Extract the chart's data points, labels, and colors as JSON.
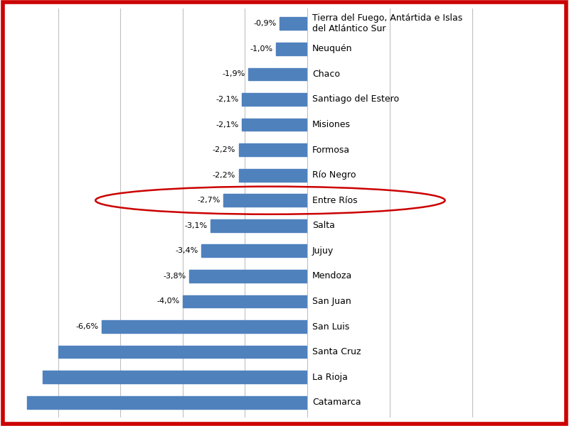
{
  "categories": [
    "Tierra del Fuego, Antártida e Islas\ndel Atlántico Sur",
    "Neuquén",
    "Chaco",
    "Santiago del Estero",
    "Misiones",
    "Formosa",
    "Río Negro",
    "Entre Ríos",
    "Salta",
    "Jujuy",
    "Mendoza",
    "San Juan",
    "San Luis",
    "Santa Cruz",
    "La Rioja",
    "Catamarca"
  ],
  "values": [
    -0.9,
    -1.0,
    -1.9,
    -2.1,
    -2.1,
    -2.2,
    -2.2,
    -2.7,
    -3.1,
    -3.4,
    -3.8,
    -4.0,
    -6.6,
    -8.0,
    -8.5,
    -9.0
  ],
  "labels": [
    "-0,9%",
    "-1,0%",
    "-1,9%",
    "-2,1%",
    "-2,1%",
    "-2,2%",
    "-2,2%",
    "-2,7%",
    "-3,1%",
    "-3,4%",
    "-3,8%",
    "-4,0%",
    "-6,6%",
    "",
    "",
    ""
  ],
  "bar_color": "#4f81bd",
  "background_color": "#ffffff",
  "highlight_index": 7,
  "ellipse_color": "#cc0000",
  "border_color": "#cc0000",
  "grid_color": "#c0c0c0",
  "text_color": "#000000",
  "label_fontsize": 8,
  "category_fontsize": 9,
  "xlim": [
    -9.5,
    0.0
  ],
  "bar_height": 0.5,
  "grid_lines": [
    -8,
    -6,
    -4,
    -2,
    0
  ]
}
